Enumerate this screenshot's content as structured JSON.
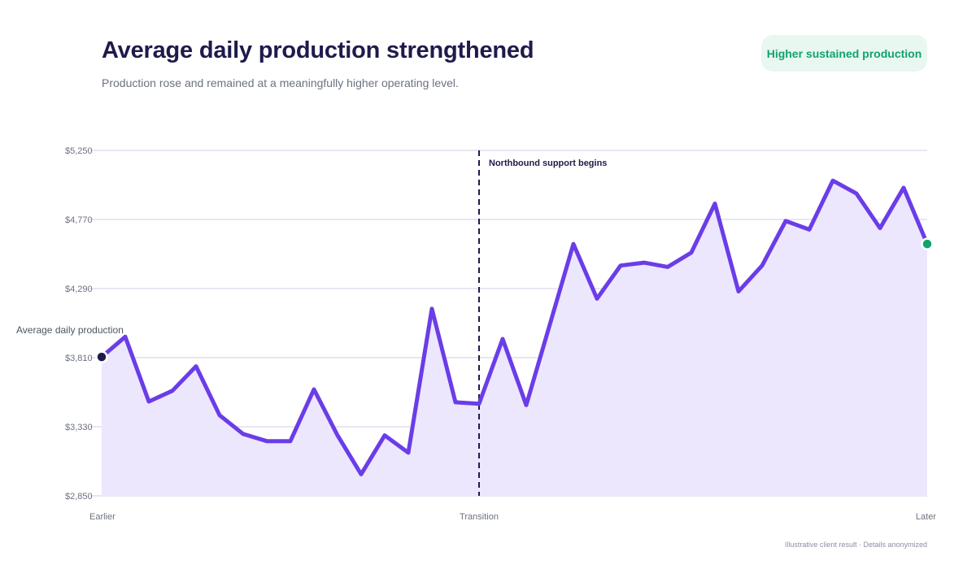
{
  "header": {
    "title": "Average daily production strengthened",
    "subtitle": "Production rose and remained at a meaningfully higher operating level.",
    "badge": "Higher sustained production"
  },
  "footnote": "Illustrative client result · Details anonymized",
  "colors": {
    "line": "#6a3de8",
    "area": "#ece7fd",
    "grid": "#dcd8ec",
    "start_marker": "#1e1b4b",
    "end_marker": "#10a36b",
    "annotation": "#1e1b4b"
  },
  "chart_data": {
    "type": "line",
    "title": "",
    "xlabel": "",
    "ylabel": "",
    "ylim": [
      2850,
      5250
    ],
    "yticks": [
      2850,
      3330,
      3810,
      4290,
      4770,
      5250
    ],
    "ytick_labels": [
      "$2,850",
      "$3,330",
      "$3,810",
      "$4,290",
      "$4,770",
      "$5,250"
    ],
    "xtick_labels": [
      {
        "x": 0,
        "label": "Earlier"
      },
      {
        "x": 16,
        "label": "Transition"
      },
      {
        "x": 35,
        "label": "Later"
      }
    ],
    "grid": true,
    "series": [
      {
        "name": "Average daily production",
        "x": [
          0,
          1,
          2,
          3,
          4,
          5,
          6,
          7,
          8,
          9,
          10,
          11,
          12,
          13,
          14,
          15,
          16,
          17,
          18,
          19,
          20,
          21,
          22,
          23,
          24,
          25,
          26,
          27,
          28,
          29,
          30,
          31,
          32,
          33,
          34,
          35
        ],
        "values": [
          3815,
          3955,
          3505,
          3580,
          3750,
          3410,
          3280,
          3230,
          3230,
          3590,
          3270,
          3000,
          3270,
          3150,
          4150,
          3500,
          3490,
          3940,
          3480,
          4040,
          4600,
          4220,
          4450,
          4470,
          4440,
          4540,
          4880,
          4270,
          4450,
          4760,
          4700,
          5040,
          4950,
          4710,
          4990,
          4600
        ]
      }
    ],
    "annotations": [
      {
        "type": "vline",
        "x": 16,
        "label": "Northbound support begins"
      }
    ]
  }
}
